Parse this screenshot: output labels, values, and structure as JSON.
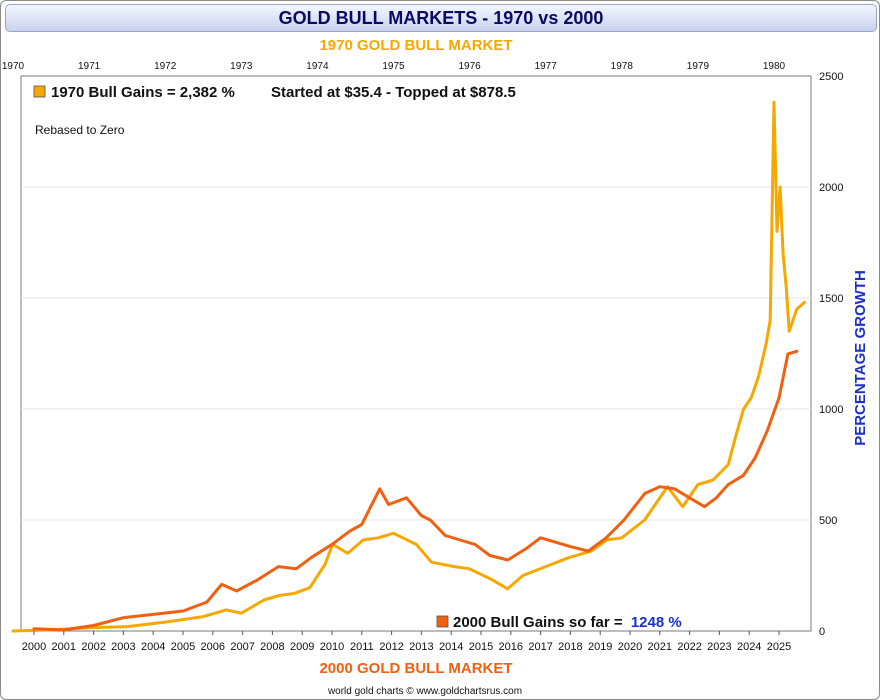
{
  "title": "GOLD BULL MARKETS - 1970 vs 2000",
  "footer": "world gold charts © www.goldchartsrus.com",
  "colors": {
    "series_1970": "#f5a800",
    "series_2000": "#f06010",
    "title": "#0a0a66",
    "axis_label": "#1a2fd0",
    "gains_value": "#1a2fd0"
  },
  "chart_data": {
    "type": "line",
    "top_axis_title": "1970 GOLD BULL MARKET",
    "bottom_axis_title": "2000 GOLD BULL MARKET",
    "ylabel": "PERCENTAGE GROWTH",
    "ylim": [
      0,
      2500
    ],
    "yticks": [
      0,
      500,
      1000,
      1500,
      2000,
      2500
    ],
    "top_ticks": [
      "1970",
      "1971",
      "1972",
      "1973",
      "1974",
      "1975",
      "1976",
      "1977",
      "1978",
      "1979",
      "1980"
    ],
    "bottom_ticks": [
      "2000",
      "2001",
      "2002",
      "2003",
      "2004",
      "2005",
      "2006",
      "2007",
      "2008",
      "2009",
      "2010",
      "2011",
      "2012",
      "2013",
      "2014",
      "2015",
      "2016",
      "2017",
      "2018",
      "2019",
      "2020",
      "2021",
      "2022",
      "2023",
      "2024",
      "2025"
    ],
    "grid": true,
    "annotations": {
      "note": "Rebased to Zero",
      "legend_1970_label": "1970 Bull Gains = 2,382 %",
      "legend_1970_extra": "Started at $35.4 - Topped at $878.5",
      "legend_2000_label": "2000 Bull Gains so far = ",
      "legend_2000_value": "1248 %"
    },
    "series": [
      {
        "name": "1970 Bull Gains",
        "x_axis": "top",
        "x": [
          1970.0,
          1970.5,
          1971.0,
          1971.5,
          1972.0,
          1972.5,
          1972.8,
          1973.0,
          1973.3,
          1973.5,
          1973.7,
          1973.9,
          1974.1,
          1974.2,
          1974.4,
          1974.6,
          1974.8,
          1975.0,
          1975.3,
          1975.5,
          1975.8,
          1976.0,
          1976.3,
          1976.5,
          1976.7,
          1977.0,
          1977.3,
          1977.6,
          1977.8,
          1978.0,
          1978.3,
          1978.6,
          1978.8,
          1979.0,
          1979.2,
          1979.4,
          1979.5,
          1979.6,
          1979.7,
          1979.8,
          1979.9,
          1979.95,
          1980.0,
          1980.04,
          1980.08,
          1980.12,
          1980.16,
          1980.2,
          1980.3,
          1980.4
        ],
        "values": [
          0,
          5,
          15,
          20,
          40,
          65,
          95,
          80,
          140,
          160,
          170,
          195,
          300,
          390,
          350,
          410,
          420,
          440,
          390,
          310,
          290,
          280,
          230,
          190,
          250,
          290,
          330,
          360,
          410,
          420,
          500,
          650,
          560,
          660,
          680,
          750,
          880,
          1000,
          1050,
          1150,
          1300,
          1400,
          2382,
          1800,
          2000,
          1700,
          1550,
          1350,
          1450,
          1480
        ]
      },
      {
        "name": "2000 Bull Gains",
        "x_axis": "bottom",
        "x": [
          2000.0,
          2001.0,
          2002.0,
          2003.0,
          2004.0,
          2005.0,
          2005.8,
          2006.3,
          2006.8,
          2007.5,
          2008.2,
          2008.8,
          2009.3,
          2010.0,
          2010.6,
          2011.0,
          2011.6,
          2011.9,
          2012.5,
          2013.0,
          2013.3,
          2013.8,
          2014.3,
          2014.8,
          2015.3,
          2015.9,
          2016.5,
          2017.0,
          2017.5,
          2018.0,
          2018.6,
          2019.2,
          2019.8,
          2020.5,
          2021.0,
          2021.5,
          2022.0,
          2022.5,
          2022.9,
          2023.3,
          2023.8,
          2024.2,
          2024.6,
          2025.0,
          2025.3,
          2025.6
        ],
        "values": [
          10,
          5,
          25,
          60,
          75,
          90,
          130,
          210,
          180,
          230,
          290,
          280,
          330,
          390,
          450,
          480,
          640,
          570,
          600,
          520,
          500,
          430,
          410,
          390,
          340,
          320,
          370,
          420,
          400,
          380,
          360,
          420,
          500,
          620,
          650,
          640,
          600,
          560,
          600,
          660,
          700,
          780,
          900,
          1050,
          1248,
          1260
        ]
      }
    ]
  }
}
